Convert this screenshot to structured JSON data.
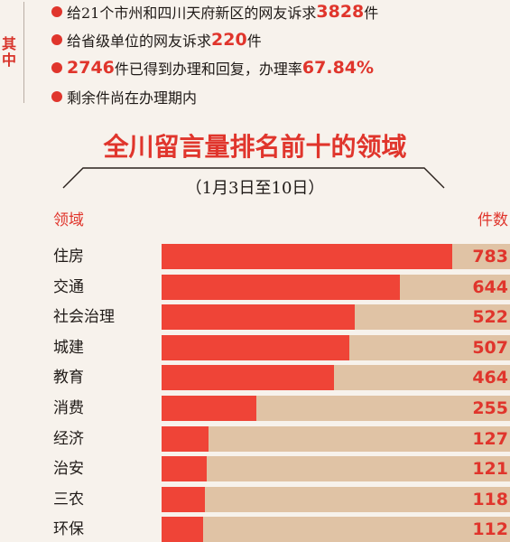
{
  "header": {
    "qizhong": [
      "其",
      "中"
    ],
    "bullets": [
      {
        "text": "给21个市州和四川天府新区的网友诉求",
        "num": "3828",
        "suffix": "件"
      },
      {
        "text": "给省级单位的网友诉求",
        "num": "220",
        "suffix": "件"
      },
      {
        "text": "",
        "num": "2746",
        "suffix": "件已得到办理和回复，办理率",
        "num2": "67.84%"
      },
      {
        "text": "剩余件尚在办理期内",
        "num": "",
        "suffix": ""
      }
    ]
  },
  "colors": {
    "accent": "#e0352c",
    "bar": "#ef4437",
    "track": "#e0c3a5",
    "background": "#f7f2ec"
  },
  "chart_data": {
    "type": "bar",
    "orientation": "horizontal",
    "title": "全川留言量排名前十的领域",
    "subtitle": "（1月3日至10日）",
    "xlabel": "件数",
    "ylabel": "领域",
    "categories": [
      "住房",
      "交通",
      "社会治理",
      "城建",
      "教育",
      "消费",
      "经济",
      "治安",
      "三农",
      "环保"
    ],
    "values": [
      783,
      644,
      522,
      507,
      464,
      255,
      127,
      121,
      118,
      112
    ],
    "value_labels": [
      "783",
      "644",
      "522",
      "507",
      "464",
      "255",
      "127",
      "121",
      "118",
      "112"
    ],
    "xlim": [
      0,
      940
    ],
    "grid": false,
    "legend": "none"
  }
}
